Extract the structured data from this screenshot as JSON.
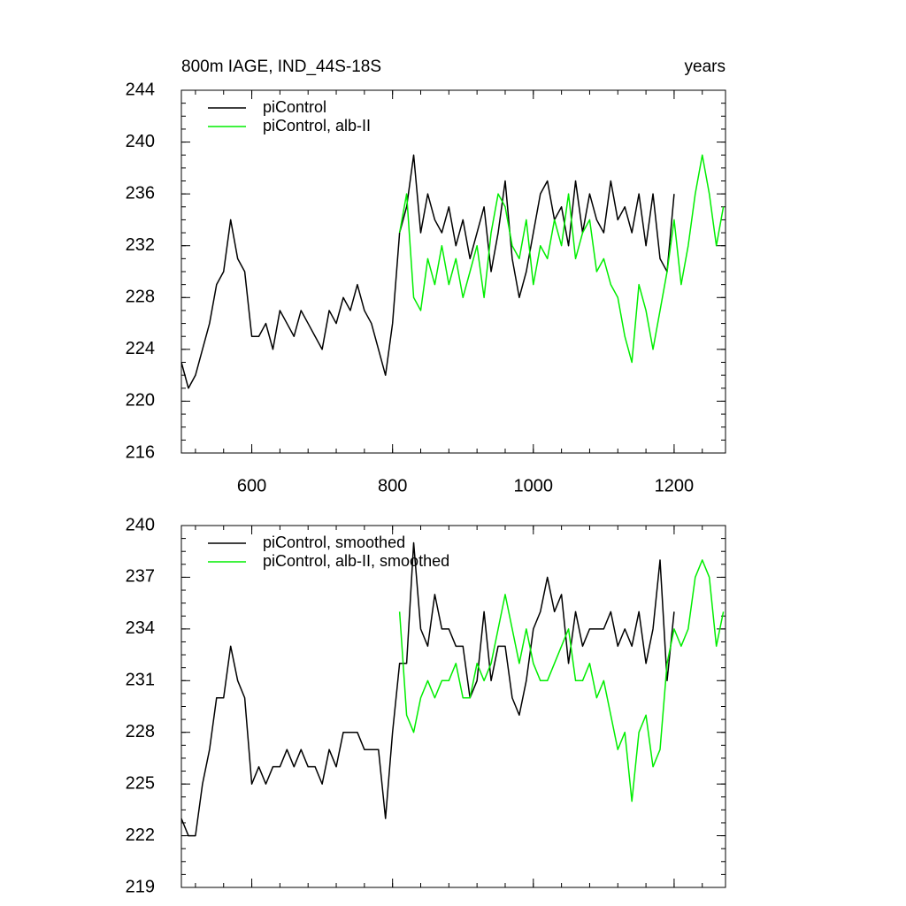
{
  "chart_data": [
    {
      "type": "line",
      "title": "800m IAGE, IND_44S-18S",
      "right_title": "years",
      "xlim": [
        500,
        1273
      ],
      "xticks": [
        600,
        800,
        1000,
        1200
      ],
      "ylim": [
        216,
        244
      ],
      "yticks": [
        216,
        220,
        224,
        228,
        232,
        236,
        240,
        244
      ],
      "legend": "top-left",
      "series": [
        {
          "name": "piControl",
          "color": "#000000",
          "x": [
            500,
            510,
            520,
            530,
            540,
            550,
            560,
            570,
            580,
            590,
            600,
            610,
            620,
            630,
            640,
            650,
            660,
            670,
            680,
            690,
            700,
            710,
            720,
            730,
            740,
            750,
            760,
            770,
            780,
            790,
            800,
            810,
            820,
            830,
            840,
            850,
            860,
            870,
            880,
            890,
            900,
            910,
            920,
            930,
            940,
            950,
            960,
            970,
            980,
            990,
            1000,
            1010,
            1020,
            1030,
            1040,
            1050,
            1060,
            1070,
            1080,
            1090,
            1100,
            1110,
            1120,
            1130,
            1140,
            1150,
            1160,
            1170,
            1180,
            1190,
            1200
          ],
          "values": [
            223,
            221,
            222,
            224,
            226,
            229,
            230,
            234,
            231,
            230,
            225,
            225,
            226,
            224,
            227,
            226,
            225,
            227,
            226,
            225,
            224,
            227,
            226,
            228,
            227,
            229,
            227,
            226,
            224,
            222,
            226,
            233,
            235,
            239,
            233,
            236,
            234,
            233,
            235,
            232,
            234,
            231,
            233,
            235,
            230,
            233,
            237,
            231,
            228,
            230,
            233,
            236,
            237,
            234,
            235,
            232,
            237,
            233,
            236,
            234,
            233,
            237,
            234,
            235,
            233,
            236,
            232,
            236,
            231,
            230,
            236
          ]
        },
        {
          "name": "piControl, alb-II",
          "color": "#00ee00",
          "x": [
            810,
            820,
            830,
            840,
            850,
            860,
            870,
            880,
            890,
            900,
            910,
            920,
            930,
            940,
            950,
            960,
            970,
            980,
            990,
            1000,
            1010,
            1020,
            1030,
            1040,
            1050,
            1060,
            1070,
            1080,
            1090,
            1100,
            1110,
            1120,
            1130,
            1140,
            1150,
            1160,
            1170,
            1180,
            1190,
            1200,
            1210,
            1220,
            1230,
            1240,
            1250,
            1260,
            1270
          ],
          "values": [
            233,
            236,
            228,
            227,
            231,
            229,
            232,
            229,
            231,
            228,
            230,
            232,
            228,
            233,
            236,
            235,
            232,
            231,
            234,
            229,
            232,
            231,
            234,
            232,
            236,
            231,
            233,
            234,
            230,
            231,
            229,
            228,
            225,
            223,
            229,
            227,
            224,
            227,
            230,
            234,
            229,
            232,
            236,
            239,
            236,
            232,
            235
          ]
        }
      ]
    },
    {
      "type": "line",
      "xlim": [
        500,
        1273
      ],
      "xticks": [
        600,
        800,
        1000,
        1200
      ],
      "ylim": [
        219,
        240
      ],
      "yticks": [
        219,
        222,
        225,
        228,
        231,
        234,
        237,
        240
      ],
      "legend": "top-left",
      "series": [
        {
          "name": "piControl, smoothed",
          "color": "#000000",
          "x": [
            500,
            510,
            520,
            530,
            540,
            550,
            560,
            570,
            580,
            590,
            600,
            610,
            620,
            630,
            640,
            650,
            660,
            670,
            680,
            690,
            700,
            710,
            720,
            730,
            740,
            750,
            760,
            770,
            780,
            790,
            800,
            810,
            820,
            830,
            840,
            850,
            860,
            870,
            880,
            890,
            900,
            910,
            920,
            930,
            940,
            950,
            960,
            970,
            980,
            990,
            1000,
            1010,
            1020,
            1030,
            1040,
            1050,
            1060,
            1070,
            1080,
            1090,
            1100,
            1110,
            1120,
            1130,
            1140,
            1150,
            1160,
            1170,
            1180,
            1190,
            1200
          ],
          "values": [
            223,
            222,
            222,
            225,
            227,
            230,
            230,
            233,
            231,
            230,
            225,
            226,
            225,
            226,
            226,
            227,
            226,
            227,
            226,
            226,
            225,
            227,
            226,
            228,
            228,
            228,
            227,
            227,
            227,
            223,
            228,
            232,
            232,
            239,
            234,
            233,
            236,
            234,
            234,
            233,
            233,
            230,
            231,
            235,
            231,
            233,
            233,
            230,
            229,
            231,
            234,
            235,
            237,
            235,
            236,
            232,
            235,
            233,
            234,
            234,
            234,
            235,
            233,
            234,
            233,
            235,
            232,
            234,
            238,
            231,
            235
          ]
        },
        {
          "name": "piControl, alb-II, smoothed",
          "color": "#00ee00",
          "x": [
            810,
            820,
            830,
            840,
            850,
            860,
            870,
            880,
            890,
            900,
            910,
            920,
            930,
            940,
            950,
            960,
            970,
            980,
            990,
            1000,
            1010,
            1020,
            1030,
            1040,
            1050,
            1060,
            1070,
            1080,
            1090,
            1100,
            1110,
            1120,
            1130,
            1140,
            1150,
            1160,
            1170,
            1180,
            1190,
            1200,
            1210,
            1220,
            1230,
            1240,
            1250,
            1260,
            1270
          ],
          "values": [
            235,
            229,
            228,
            230,
            231,
            230,
            231,
            231,
            232,
            230,
            230,
            232,
            231,
            232,
            234,
            236,
            234,
            232,
            234,
            232,
            231,
            231,
            232,
            233,
            234,
            231,
            231,
            232,
            230,
            231,
            229,
            227,
            228,
            224,
            228,
            229,
            226,
            227,
            232,
            234,
            233,
            234,
            237,
            238,
            237,
            233,
            235
          ]
        }
      ]
    }
  ]
}
